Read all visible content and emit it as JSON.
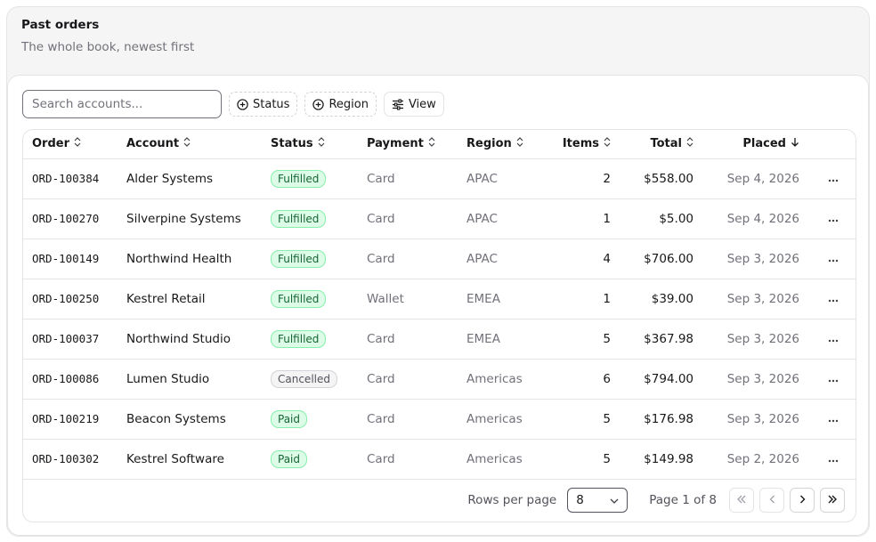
{
  "header": {
    "title": "Past orders",
    "subtitle": "The whole book, newest first"
  },
  "toolbar": {
    "search_placeholder": "Search accounts...",
    "status_label": "Status",
    "region_label": "Region",
    "view_label": "View"
  },
  "table": {
    "columns": [
      "Order",
      "Account",
      "Status",
      "Payment",
      "Region",
      "Items",
      "Total",
      "Placed"
    ],
    "sort": {
      "column": "Placed",
      "direction": "desc"
    },
    "rows": [
      {
        "order": "ORD-100384",
        "account": "Alder Systems",
        "status": "Fulfilled",
        "payment": "Card",
        "region": "APAC",
        "items": "2",
        "total": "$558.00",
        "placed": "Sep 4, 2026"
      },
      {
        "order": "ORD-100270",
        "account": "Silverpine Systems",
        "status": "Fulfilled",
        "payment": "Card",
        "region": "APAC",
        "items": "1",
        "total": "$5.00",
        "placed": "Sep 4, 2026"
      },
      {
        "order": "ORD-100149",
        "account": "Northwind Health",
        "status": "Fulfilled",
        "payment": "Card",
        "region": "APAC",
        "items": "4",
        "total": "$706.00",
        "placed": "Sep 3, 2026"
      },
      {
        "order": "ORD-100250",
        "account": "Kestrel Retail",
        "status": "Fulfilled",
        "payment": "Wallet",
        "region": "EMEA",
        "items": "1",
        "total": "$39.00",
        "placed": "Sep 3, 2026"
      },
      {
        "order": "ORD-100037",
        "account": "Northwind Studio",
        "status": "Fulfilled",
        "payment": "Card",
        "region": "EMEA",
        "items": "5",
        "total": "$367.98",
        "placed": "Sep 3, 2026"
      },
      {
        "order": "ORD-100086",
        "account": "Lumen Studio",
        "status": "Cancelled",
        "payment": "Card",
        "region": "Americas",
        "items": "6",
        "total": "$794.00",
        "placed": "Sep 3, 2026"
      },
      {
        "order": "ORD-100219",
        "account": "Beacon Systems",
        "status": "Paid",
        "payment": "Card",
        "region": "Americas",
        "items": "5",
        "total": "$176.98",
        "placed": "Sep 3, 2026"
      },
      {
        "order": "ORD-100302",
        "account": "Kestrel Software",
        "status": "Paid",
        "payment": "Card",
        "region": "Americas",
        "items": "5",
        "total": "$149.98",
        "placed": "Sep 2, 2026"
      }
    ]
  },
  "pagination": {
    "rows_per_page_label": "Rows per page",
    "rows_per_page_value": "8",
    "page_info": "Page 1 of 8"
  },
  "colors": {
    "badge_green_bg": "#dcfce7",
    "badge_green_text": "#166534",
    "badge_gray_bg": "#f4f4f5"
  }
}
